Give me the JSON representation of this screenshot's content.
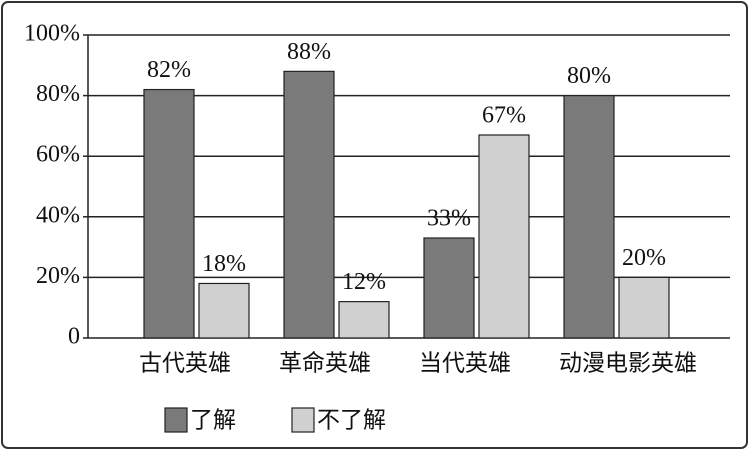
{
  "chart_data": {
    "type": "bar",
    "categories": [
      "古代英雄",
      "革命英雄",
      "当代英雄",
      "动漫电影英雄"
    ],
    "series": [
      {
        "name": "了解",
        "color": "#7a7a7a",
        "values": [
          82,
          88,
          33,
          80
        ],
        "value_labels": [
          "82%",
          "88%",
          "33%",
          "80%"
        ]
      },
      {
        "name": "不了解",
        "color": "#d0d0d0",
        "values": [
          18,
          12,
          67,
          20
        ],
        "value_labels": [
          "18%",
          "12%",
          "67%",
          "20%"
        ]
      }
    ],
    "ylim": [
      0,
      100
    ],
    "yticks": [
      0,
      {
        "value": 20,
        "label": "20%"
      },
      {
        "value": 40,
        "label": "40%"
      },
      {
        "value": 60,
        "label": "60%"
      },
      {
        "value": 80,
        "label": "80%"
      },
      {
        "value": 100,
        "label": "100%"
      }
    ],
    "grid": true,
    "legend": "bottom"
  }
}
